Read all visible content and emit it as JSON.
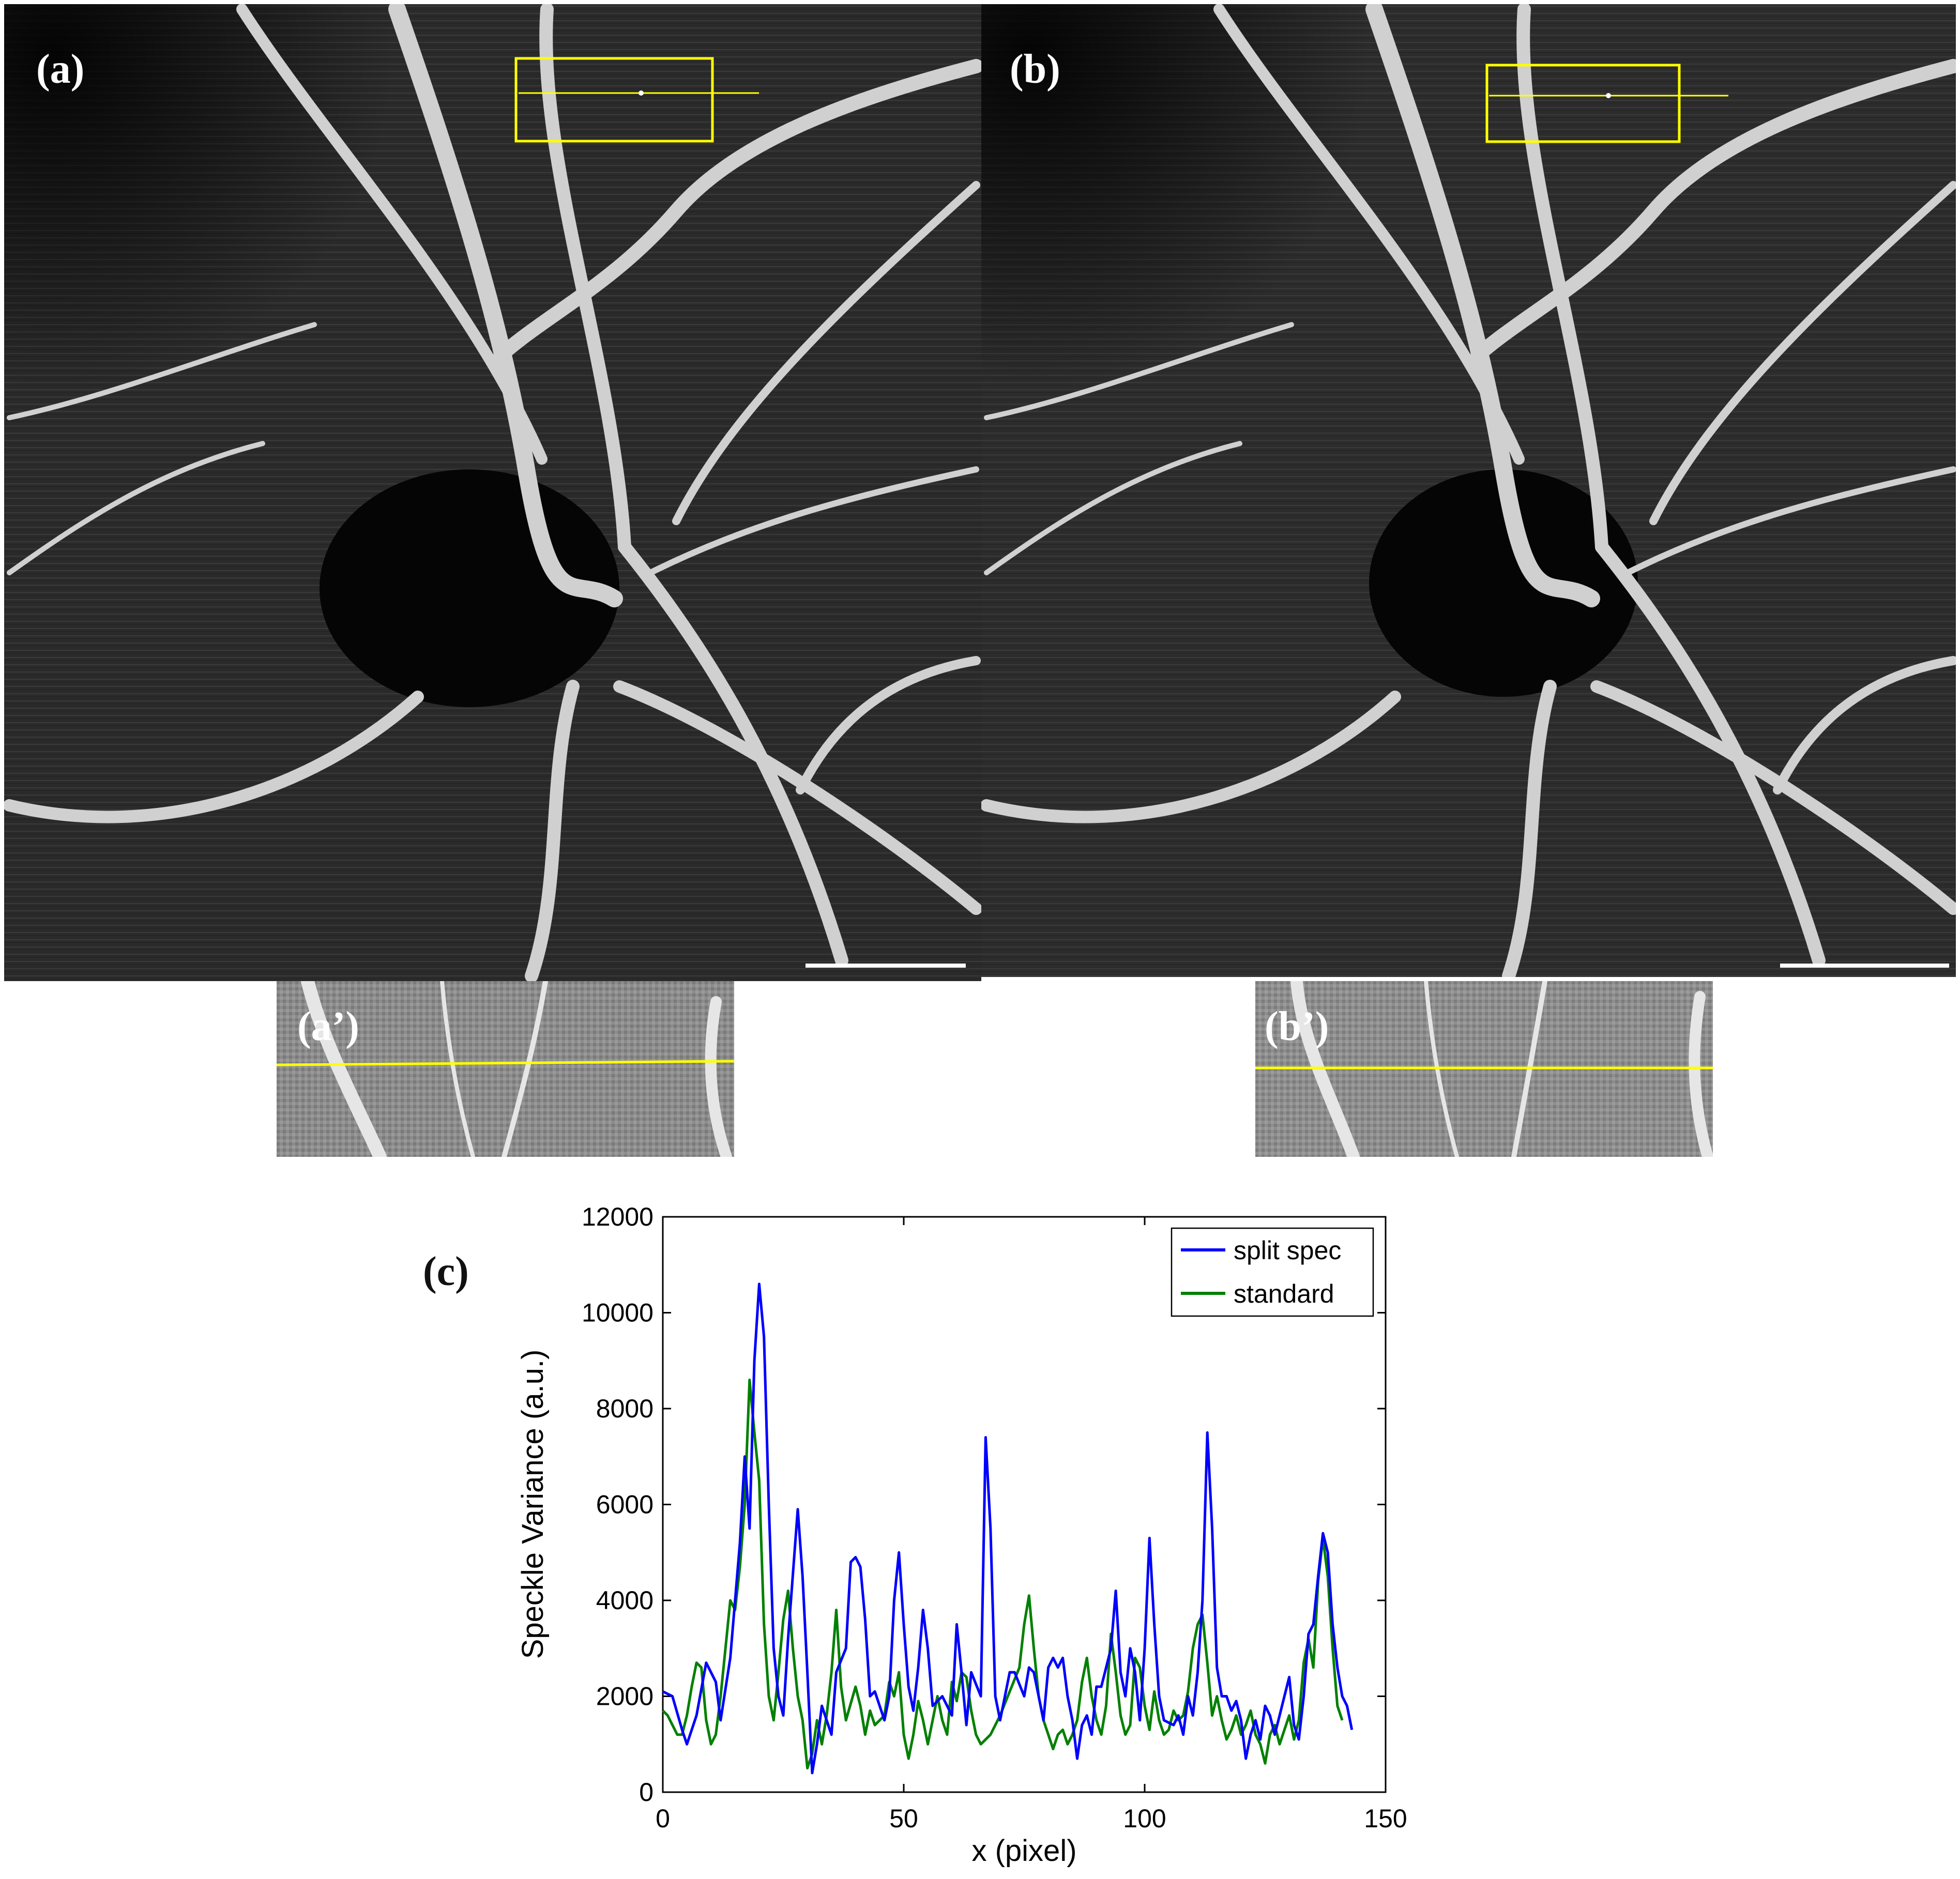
{
  "panels": {
    "a_label": "(a)",
    "b_label": "(b)",
    "a_inset_label": "(a’)",
    "b_inset_label": "(b’)",
    "c_label": "(c)"
  },
  "colors": {
    "roi_box": "#ffff00",
    "series_split": "#0000ff",
    "series_standard": "#008000"
  },
  "chart_data": {
    "type": "line",
    "xlabel": "x (pixel)",
    "ylabel": "Speckle Variance (a.u.)",
    "xlim": [
      0,
      150
    ],
    "ylim": [
      0,
      12000
    ],
    "xticks": [
      0,
      50,
      100,
      150
    ],
    "yticks": [
      0,
      2000,
      4000,
      6000,
      8000,
      10000,
      12000
    ],
    "legend_position": "top-right",
    "series": [
      {
        "name": "split spec",
        "color": "#0000ff",
        "points": [
          [
            0,
            2100
          ],
          [
            2,
            2000
          ],
          [
            4,
            1300
          ],
          [
            5,
            1000
          ],
          [
            7,
            1600
          ],
          [
            9,
            2700
          ],
          [
            11,
            2300
          ],
          [
            12,
            1500
          ],
          [
            14,
            2800
          ],
          [
            15,
            4000
          ],
          [
            16,
            5200
          ],
          [
            17,
            7000
          ],
          [
            18,
            5500
          ],
          [
            19,
            9000
          ],
          [
            20,
            10600
          ],
          [
            21,
            9500
          ],
          [
            22,
            6000
          ],
          [
            23,
            3000
          ],
          [
            24,
            2000
          ],
          [
            25,
            1600
          ],
          [
            26,
            3200
          ],
          [
            28,
            5900
          ],
          [
            29,
            4500
          ],
          [
            30,
            2500
          ],
          [
            31,
            400
          ],
          [
            32,
            1000
          ],
          [
            33,
            1800
          ],
          [
            35,
            1200
          ],
          [
            36,
            2500
          ],
          [
            38,
            3000
          ],
          [
            39,
            4800
          ],
          [
            40,
            4900
          ],
          [
            41,
            4700
          ],
          [
            42,
            3600
          ],
          [
            43,
            2000
          ],
          [
            44,
            2100
          ],
          [
            46,
            1500
          ],
          [
            47,
            2000
          ],
          [
            48,
            4000
          ],
          [
            49,
            5000
          ],
          [
            50,
            3500
          ],
          [
            51,
            2200
          ],
          [
            52,
            1700
          ],
          [
            53,
            2600
          ],
          [
            54,
            3800
          ],
          [
            55,
            3000
          ],
          [
            56,
            1800
          ],
          [
            58,
            2000
          ],
          [
            60,
            1600
          ],
          [
            61,
            3500
          ],
          [
            62,
            2500
          ],
          [
            63,
            1400
          ],
          [
            64,
            2500
          ],
          [
            66,
            2000
          ],
          [
            67,
            7400
          ],
          [
            68,
            5500
          ],
          [
            69,
            2000
          ],
          [
            70,
            1500
          ],
          [
            71,
            2000
          ],
          [
            72,
            2500
          ],
          [
            73,
            2500
          ],
          [
            75,
            2000
          ],
          [
            76,
            2600
          ],
          [
            77,
            2500
          ],
          [
            79,
            1500
          ],
          [
            80,
            2600
          ],
          [
            81,
            2800
          ],
          [
            82,
            2600
          ],
          [
            83,
            2800
          ],
          [
            84,
            2000
          ],
          [
            85,
            1500
          ],
          [
            86,
            700
          ],
          [
            87,
            1400
          ],
          [
            88,
            1600
          ],
          [
            89,
            1200
          ],
          [
            90,
            2200
          ],
          [
            91,
            2200
          ],
          [
            93,
            3000
          ],
          [
            94,
            4200
          ],
          [
            95,
            2500
          ],
          [
            96,
            2000
          ],
          [
            97,
            3000
          ],
          [
            98,
            2500
          ],
          [
            99,
            1500
          ],
          [
            100,
            3000
          ],
          [
            101,
            5300
          ],
          [
            102,
            3500
          ],
          [
            103,
            2000
          ],
          [
            104,
            1500
          ],
          [
            106,
            1400
          ],
          [
            107,
            1600
          ],
          [
            108,
            1200
          ],
          [
            109,
            2000
          ],
          [
            110,
            1600
          ],
          [
            111,
            2500
          ],
          [
            112,
            4000
          ],
          [
            113,
            7500
          ],
          [
            114,
            5500
          ],
          [
            115,
            2600
          ],
          [
            116,
            2000
          ],
          [
            117,
            2000
          ],
          [
            118,
            1700
          ],
          [
            119,
            1900
          ],
          [
            120,
            1500
          ],
          [
            121,
            700
          ],
          [
            122,
            1200
          ],
          [
            123,
            1500
          ],
          [
            124,
            1100
          ],
          [
            125,
            1800
          ],
          [
            126,
            1600
          ],
          [
            127,
            1200
          ],
          [
            128,
            1600
          ],
          [
            129,
            2000
          ],
          [
            130,
            2400
          ],
          [
            131,
            1400
          ],
          [
            132,
            1100
          ],
          [
            133,
            2000
          ],
          [
            134,
            3300
          ],
          [
            135,
            3500
          ],
          [
            136,
            4500
          ],
          [
            137,
            5400
          ],
          [
            138,
            5000
          ],
          [
            139,
            3500
          ],
          [
            140,
            2600
          ],
          [
            141,
            2000
          ],
          [
            142,
            1800
          ],
          [
            143,
            1300
          ]
        ]
      },
      {
        "name": "standard",
        "color": "#008000",
        "points": [
          [
            0,
            1700
          ],
          [
            1,
            1600
          ],
          [
            3,
            1200
          ],
          [
            4,
            1200
          ],
          [
            5,
            1600
          ],
          [
            6,
            2200
          ],
          [
            7,
            2700
          ],
          [
            8,
            2600
          ],
          [
            9,
            1500
          ],
          [
            10,
            1000
          ],
          [
            11,
            1200
          ],
          [
            12,
            2000
          ],
          [
            13,
            3000
          ],
          [
            14,
            4000
          ],
          [
            15,
            3800
          ],
          [
            16,
            4700
          ],
          [
            17,
            6000
          ],
          [
            18,
            8600
          ],
          [
            19,
            7500
          ],
          [
            20,
            6500
          ],
          [
            21,
            3500
          ],
          [
            22,
            2000
          ],
          [
            23,
            1500
          ],
          [
            24,
            2500
          ],
          [
            25,
            3600
          ],
          [
            26,
            4200
          ],
          [
            27,
            3000
          ],
          [
            28,
            2000
          ],
          [
            29,
            1500
          ],
          [
            30,
            500
          ],
          [
            31,
            800
          ],
          [
            32,
            1500
          ],
          [
            33,
            1000
          ],
          [
            34,
            1600
          ],
          [
            35,
            2500
          ],
          [
            36,
            3800
          ],
          [
            37,
            2200
          ],
          [
            38,
            1500
          ],
          [
            40,
            2200
          ],
          [
            41,
            1800
          ],
          [
            42,
            1200
          ],
          [
            43,
            1700
          ],
          [
            44,
            1400
          ],
          [
            46,
            1600
          ],
          [
            47,
            2300
          ],
          [
            48,
            2000
          ],
          [
            49,
            2500
          ],
          [
            50,
            1200
          ],
          [
            51,
            700
          ],
          [
            52,
            1200
          ],
          [
            53,
            1900
          ],
          [
            54,
            1500
          ],
          [
            55,
            1000
          ],
          [
            57,
            2000
          ],
          [
            58,
            1500
          ],
          [
            59,
            1200
          ],
          [
            60,
            2300
          ],
          [
            61,
            1900
          ],
          [
            62,
            2500
          ],
          [
            63,
            2400
          ],
          [
            64,
            1700
          ],
          [
            65,
            1200
          ],
          [
            66,
            1000
          ],
          [
            68,
            1200
          ],
          [
            70,
            1600
          ],
          [
            72,
            2100
          ],
          [
            74,
            2600
          ],
          [
            75,
            3500
          ],
          [
            76,
            4100
          ],
          [
            77,
            3000
          ],
          [
            78,
            2000
          ],
          [
            79,
            1500
          ],
          [
            80,
            1200
          ],
          [
            81,
            900
          ],
          [
            82,
            1200
          ],
          [
            83,
            1300
          ],
          [
            84,
            1000
          ],
          [
            85,
            1200
          ],
          [
            86,
            1500
          ],
          [
            87,
            2300
          ],
          [
            88,
            2800
          ],
          [
            89,
            2000
          ],
          [
            90,
            1500
          ],
          [
            91,
            1200
          ],
          [
            92,
            1800
          ],
          [
            93,
            3300
          ],
          [
            94,
            2500
          ],
          [
            95,
            1600
          ],
          [
            96,
            1200
          ],
          [
            97,
            1400
          ],
          [
            98,
            2800
          ],
          [
            99,
            2600
          ],
          [
            100,
            1800
          ],
          [
            101,
            1300
          ],
          [
            102,
            2100
          ],
          [
            103,
            1500
          ],
          [
            104,
            1200
          ],
          [
            105,
            1300
          ],
          [
            106,
            1700
          ],
          [
            107,
            1500
          ],
          [
            108,
            1600
          ],
          [
            109,
            2100
          ],
          [
            110,
            3000
          ],
          [
            111,
            3500
          ],
          [
            112,
            3700
          ],
          [
            113,
            2700
          ],
          [
            114,
            1600
          ],
          [
            115,
            2000
          ],
          [
            116,
            1500
          ],
          [
            117,
            1100
          ],
          [
            118,
            1300
          ],
          [
            119,
            1600
          ],
          [
            120,
            1200
          ],
          [
            121,
            1400
          ],
          [
            122,
            1700
          ],
          [
            123,
            1200
          ],
          [
            124,
            1000
          ],
          [
            125,
            600
          ],
          [
            126,
            1200
          ],
          [
            127,
            1400
          ],
          [
            128,
            1000
          ],
          [
            129,
            1300
          ],
          [
            130,
            1600
          ],
          [
            131,
            1100
          ],
          [
            132,
            1500
          ],
          [
            133,
            2700
          ],
          [
            134,
            3200
          ],
          [
            135,
            2600
          ],
          [
            136,
            4400
          ],
          [
            137,
            5300
          ],
          [
            138,
            4500
          ],
          [
            139,
            3000
          ],
          [
            140,
            1800
          ],
          [
            141,
            1500
          ]
        ]
      }
    ]
  }
}
